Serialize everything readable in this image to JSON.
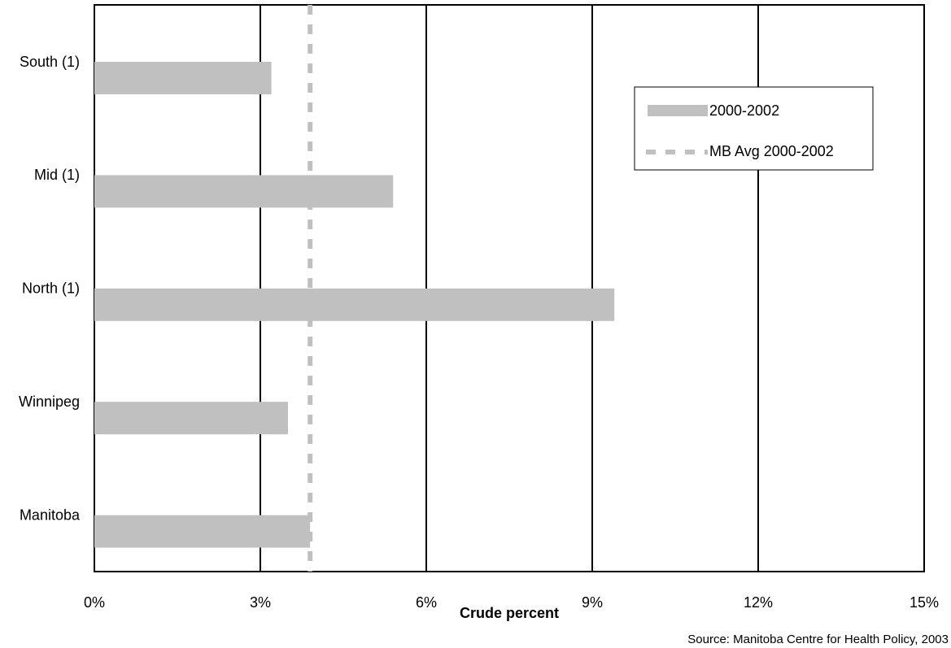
{
  "chart_data": {
    "type": "bar",
    "orientation": "horizontal",
    "x_label": "Crude percent",
    "source": "Source: Manitoba Centre for Health Policy, 2003",
    "categories": [
      "South (1)",
      "Mid (1)",
      "North (1)",
      "Winnipeg",
      "Manitoba"
    ],
    "series": [
      {
        "name": "2000-2002",
        "color": "#c0c0c0",
        "values": [
          3.2,
          5.4,
          9.4,
          3.5,
          3.9
        ]
      }
    ],
    "reference_line": {
      "name": "MB Avg 2000-2002",
      "value": 3.9,
      "color": "#c0c0c0",
      "style": "dashed"
    },
    "xlim": [
      0,
      15
    ],
    "xticks": [
      {
        "value": 0,
        "label": "0%"
      },
      {
        "value": 3,
        "label": "3%"
      },
      {
        "value": 6,
        "label": "6%"
      },
      {
        "value": 9,
        "label": "9%"
      },
      {
        "value": 12,
        "label": "12%"
      },
      {
        "value": 15,
        "label": "15%"
      }
    ],
    "grid": true,
    "legend": "upper right"
  }
}
